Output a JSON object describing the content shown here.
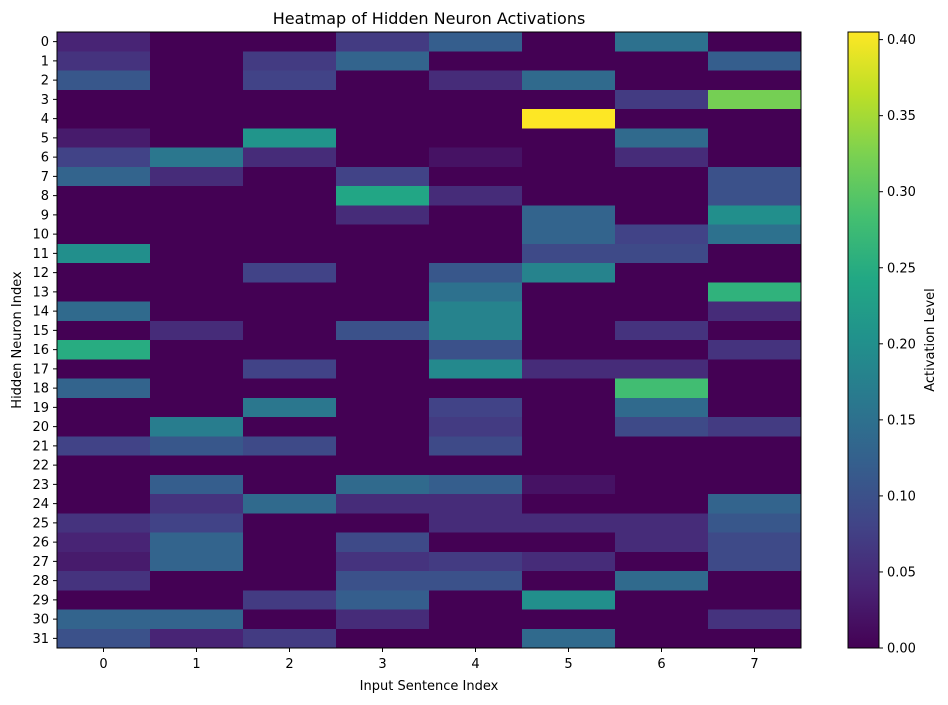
{
  "chart_data": {
    "type": "heatmap",
    "title": "Heatmap of Hidden Neuron Activations",
    "xlabel": "Input Sentence Index",
    "ylabel": "Hidden Neuron Index",
    "x_categories": [
      "0",
      "1",
      "2",
      "3",
      "4",
      "5",
      "6",
      "7"
    ],
    "y_categories": [
      "0",
      "1",
      "2",
      "3",
      "4",
      "5",
      "6",
      "7",
      "8",
      "9",
      "10",
      "11",
      "12",
      "13",
      "14",
      "15",
      "16",
      "17",
      "18",
      "19",
      "20",
      "21",
      "22",
      "23",
      "24",
      "25",
      "26",
      "27",
      "28",
      "29",
      "30",
      "31"
    ],
    "colorbar": {
      "label": "Activation Level",
      "ticks": [
        "0.00",
        "0.05",
        "0.10",
        "0.15",
        "0.20",
        "0.25",
        "0.30",
        "0.35",
        "0.40"
      ],
      "min": 0.0,
      "max": 0.405,
      "colormap": "viridis"
    },
    "values": [
      [
        0.04,
        0.0,
        0.0,
        0.07,
        0.12,
        0.0,
        0.15,
        0.0
      ],
      [
        0.06,
        0.0,
        0.07,
        0.13,
        0.0,
        0.0,
        0.0,
        0.12
      ],
      [
        0.11,
        0.0,
        0.08,
        0.0,
        0.05,
        0.14,
        0.0,
        0.0
      ],
      [
        0.0,
        0.0,
        0.0,
        0.0,
        0.0,
        0.0,
        0.07,
        0.32
      ],
      [
        0.0,
        0.0,
        0.0,
        0.0,
        0.0,
        0.405,
        0.0,
        0.0
      ],
      [
        0.03,
        0.0,
        0.21,
        0.0,
        0.0,
        0.0,
        0.14,
        0.0
      ],
      [
        0.08,
        0.16,
        0.05,
        0.0,
        0.02,
        0.0,
        0.05,
        0.0
      ],
      [
        0.13,
        0.05,
        0.0,
        0.08,
        0.0,
        0.0,
        0.0,
        0.1
      ],
      [
        0.0,
        0.0,
        0.0,
        0.24,
        0.05,
        0.0,
        0.0,
        0.1
      ],
      [
        0.0,
        0.0,
        0.0,
        0.05,
        0.0,
        0.13,
        0.0,
        0.2
      ],
      [
        0.0,
        0.0,
        0.0,
        0.0,
        0.0,
        0.13,
        0.08,
        0.15
      ],
      [
        0.2,
        0.0,
        0.0,
        0.0,
        0.0,
        0.09,
        0.09,
        0.0
      ],
      [
        0.0,
        0.0,
        0.08,
        0.0,
        0.11,
        0.18,
        0.0,
        0.0
      ],
      [
        0.0,
        0.0,
        0.0,
        0.0,
        0.15,
        0.0,
        0.0,
        0.26
      ],
      [
        0.14,
        0.0,
        0.0,
        0.0,
        0.18,
        0.0,
        0.0,
        0.05
      ],
      [
        0.0,
        0.05,
        0.0,
        0.1,
        0.18,
        0.0,
        0.06,
        0.0
      ],
      [
        0.25,
        0.0,
        0.0,
        0.0,
        0.1,
        0.0,
        0.0,
        0.06
      ],
      [
        0.0,
        0.0,
        0.08,
        0.0,
        0.19,
        0.05,
        0.05,
        0.0
      ],
      [
        0.13,
        0.0,
        0.0,
        0.0,
        0.0,
        0.0,
        0.28,
        0.0
      ],
      [
        0.0,
        0.0,
        0.16,
        0.0,
        0.08,
        0.0,
        0.14,
        0.0
      ],
      [
        0.0,
        0.17,
        0.0,
        0.0,
        0.07,
        0.0,
        0.09,
        0.07
      ],
      [
        0.08,
        0.11,
        0.09,
        0.0,
        0.09,
        0.0,
        0.0,
        0.0
      ],
      [
        0.0,
        0.0,
        0.0,
        0.0,
        0.0,
        0.0,
        0.0,
        0.0
      ],
      [
        0.0,
        0.12,
        0.0,
        0.14,
        0.12,
        0.02,
        0.0,
        0.0
      ],
      [
        0.0,
        0.06,
        0.14,
        0.05,
        0.05,
        0.0,
        0.0,
        0.13
      ],
      [
        0.06,
        0.08,
        0.0,
        0.0,
        0.05,
        0.05,
        0.05,
        0.11
      ],
      [
        0.04,
        0.13,
        0.0,
        0.09,
        0.0,
        0.0,
        0.05,
        0.09
      ],
      [
        0.03,
        0.13,
        0.0,
        0.06,
        0.07,
        0.05,
        0.0,
        0.09
      ],
      [
        0.06,
        0.0,
        0.0,
        0.1,
        0.1,
        0.0,
        0.14,
        0.0
      ],
      [
        0.0,
        0.0,
        0.07,
        0.12,
        0.0,
        0.2,
        0.0,
        0.0
      ],
      [
        0.13,
        0.13,
        0.0,
        0.05,
        0.0,
        0.0,
        0.0,
        0.06
      ],
      [
        0.1,
        0.04,
        0.07,
        0.0,
        0.0,
        0.14,
        0.0,
        0.0
      ]
    ]
  }
}
